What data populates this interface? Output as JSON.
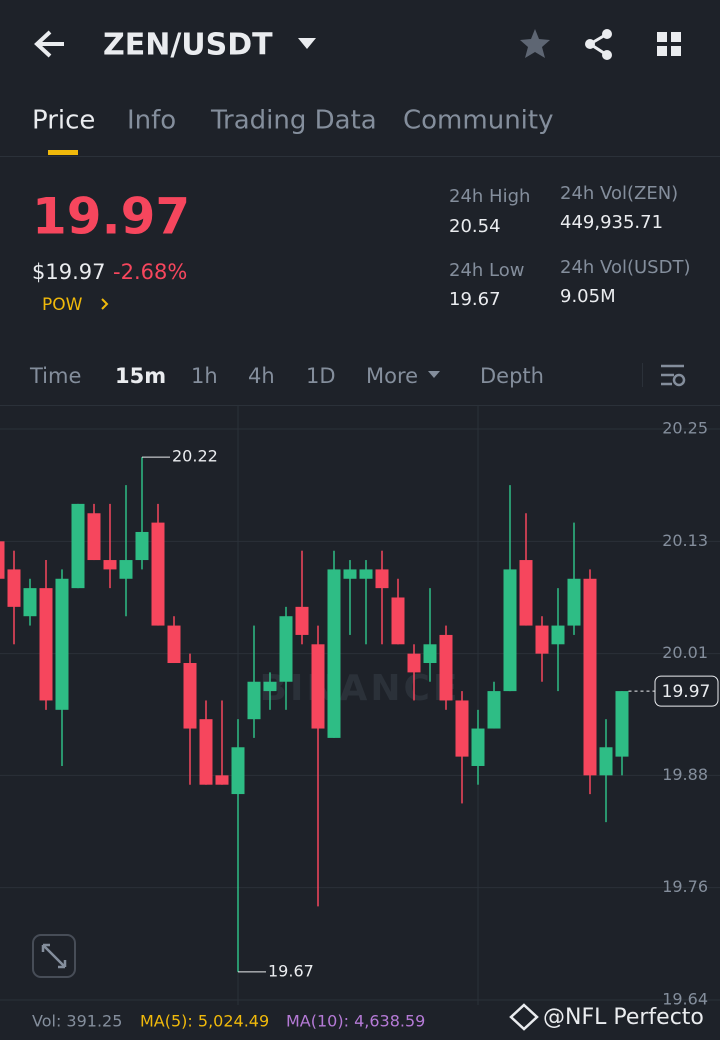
{
  "header": {
    "title": "ZEN/USDT"
  },
  "tabs": [
    "Price",
    "Info",
    "Trading Data",
    "Community"
  ],
  "price": {
    "last": "19.97",
    "usd": "$19.97",
    "change": "-2.68%",
    "tag": "POW"
  },
  "stats": [
    {
      "label": "24h High",
      "value": "20.54"
    },
    {
      "label": "24h Vol(ZEN)",
      "value": "449,935.71"
    },
    {
      "label": "24h Low",
      "value": "19.67"
    },
    {
      "label": "24h Vol(USDT)",
      "value": "9.05M"
    }
  ],
  "timeframes": [
    "Time",
    "15m",
    "1h",
    "4h",
    "1D",
    "More",
    "Depth"
  ],
  "chart_data": {
    "type": "candlestick",
    "categories": [
      null,
      null,
      null,
      null,
      null,
      null,
      null,
      null,
      null,
      null,
      null,
      null,
      null,
      null,
      null,
      null,
      null,
      null,
      null,
      null,
      null,
      null,
      null,
      null,
      null,
      null,
      null,
      null,
      null,
      null,
      null,
      null,
      null,
      null,
      null,
      null,
      null,
      null,
      null,
      null
    ],
    "open": [
      20.13,
      20.1,
      20.05,
      20.08,
      19.95,
      20.08,
      20.16,
      20.11,
      20.09,
      20.11,
      20.15,
      20.04,
      20.0,
      19.94,
      19.88,
      19.86,
      19.94,
      19.97,
      19.98,
      20.06,
      20.02,
      19.92,
      20.09,
      20.09,
      20.1,
      20.07,
      20.01,
      20.0,
      20.03,
      19.96,
      19.89,
      19.93,
      19.97,
      20.11,
      20.04,
      20.02,
      20.04,
      20.09,
      19.88,
      19.9
    ],
    "high": [
      20.14,
      20.12,
      20.09,
      20.11,
      20.1,
      20.17,
      20.17,
      20.17,
      20.19,
      20.22,
      20.17,
      20.05,
      20.01,
      19.96,
      19.96,
      19.94,
      20.04,
      19.99,
      20.06,
      20.12,
      20.04,
      20.12,
      20.11,
      20.11,
      20.12,
      20.09,
      20.02,
      20.08,
      20.04,
      19.97,
      19.95,
      19.98,
      20.19,
      20.16,
      20.05,
      20.08,
      20.15,
      20.1,
      19.94,
      19.97
    ],
    "low": [
      20.08,
      20.02,
      20.04,
      19.95,
      19.89,
      20.08,
      20.11,
      20.08,
      20.05,
      20.1,
      20.04,
      20.0,
      19.87,
      19.87,
      19.87,
      19.67,
      19.92,
      19.95,
      19.95,
      20.02,
      19.74,
      19.92,
      20.03,
      20.02,
      20.02,
      20.02,
      19.96,
      19.98,
      19.95,
      19.85,
      19.87,
      19.93,
      19.97,
      20.04,
      19.98,
      19.97,
      20.03,
      19.86,
      19.83,
      19.88
    ],
    "close": [
      20.09,
      20.06,
      20.08,
      19.96,
      20.09,
      20.17,
      20.11,
      20.1,
      20.11,
      20.14,
      20.04,
      20.0,
      19.93,
      19.87,
      19.87,
      19.91,
      19.98,
      19.98,
      20.05,
      20.03,
      19.93,
      20.1,
      20.1,
      20.1,
      20.08,
      20.02,
      19.99,
      20.02,
      19.96,
      19.9,
      19.93,
      19.97,
      20.1,
      20.04,
      20.01,
      20.04,
      20.09,
      19.88,
      19.91,
      19.97
    ],
    "up_color": "#2ebd85",
    "down_color": "#f6465d",
    "ylim": [
      19.64,
      20.25
    ],
    "yticks": [
      20.25,
      20.13,
      20.01,
      19.88,
      19.76,
      19.64
    ],
    "last_price": 19.97,
    "high_label": "20.22",
    "low_label": "19.67",
    "watermark": "BINANCE"
  },
  "footer": {
    "vol": "Vol: 391.25",
    "ma5": "MA(5): 5,024.49",
    "ma10": "MA(10): 4,638.59"
  },
  "credit": "@NFL Perfecto"
}
